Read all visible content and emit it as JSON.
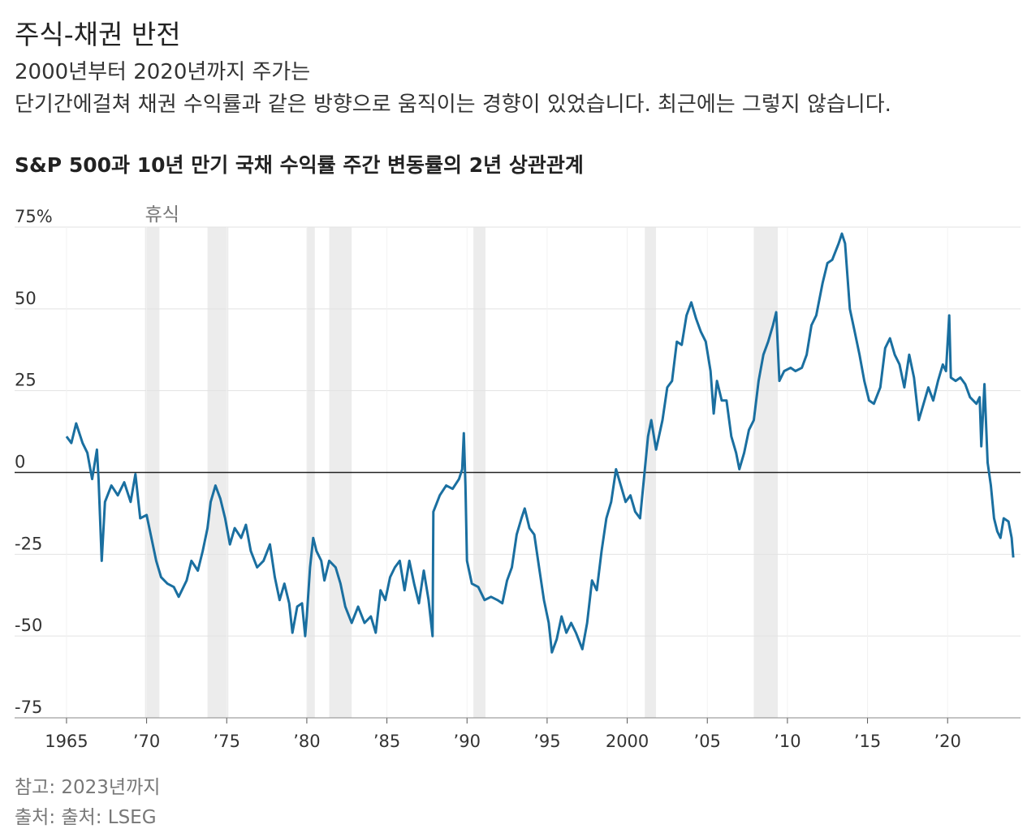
{
  "chart_data": {
    "type": "line",
    "title": "주식-채권 반전",
    "subtitle_lines": [
      "2000년부터 2020년까지 주가는",
      "단기간에걸쳐 채권 수익률과 같은 방향으로 움직이는 경향이 있었습니다. 최근에는 그렇지 않습니다."
    ],
    "chart_title": "S&P 500과 10년 만기 국채 수익률 주간 변동률의 2년 상관관계",
    "note": "참고: 2023년까지",
    "source": "출처: 출처: LSEG",
    "recession_label": "휴식",
    "recessions": [
      [
        1969.9,
        1970.8
      ],
      [
        1973.8,
        1975.1
      ],
      [
        1980.0,
        1980.5
      ],
      [
        1981.4,
        1982.8
      ],
      [
        1990.4,
        1991.15
      ],
      [
        2001.1,
        2001.8
      ],
      [
        2007.9,
        2009.4
      ]
    ],
    "color": "#1a6fa0",
    "grid": true,
    "xlim": [
      1961.76,
      2024.55
    ],
    "ylim": [
      -75,
      75
    ],
    "yticks": [
      -75,
      -50,
      -25,
      0,
      25,
      50,
      {
        "value": 75,
        "label": "75%"
      }
    ],
    "xticks": [
      1965,
      {
        "value": 1970,
        "label": "’70"
      },
      {
        "value": 1975,
        "label": "’75"
      },
      {
        "value": 1980,
        "label": "’80"
      },
      {
        "value": 1985,
        "label": "’85"
      },
      {
        "value": 1990,
        "label": "’90"
      },
      {
        "value": 1995,
        "label": "’95"
      },
      2000,
      {
        "value": 2005,
        "label": "’05"
      },
      {
        "value": 2010,
        "label": "’10"
      },
      {
        "value": 2015,
        "label": "’15"
      },
      {
        "value": 2020,
        "label": "’20"
      }
    ],
    "x": [
      1965.0,
      1965.3,
      1965.6,
      1966.0,
      1966.3,
      1966.6,
      1966.9,
      1967.0,
      1967.2,
      1967.4,
      1967.8,
      1968.2,
      1968.6,
      1969.0,
      1969.3,
      1969.6,
      1970.0,
      1970.3,
      1970.6,
      1970.9,
      1971.3,
      1971.7,
      1972.0,
      1972.5,
      1972.8,
      1973.2,
      1973.5,
      1973.8,
      1974.0,
      1974.3,
      1974.6,
      1974.9,
      1975.2,
      1975.5,
      1975.9,
      1976.2,
      1976.5,
      1976.9,
      1977.3,
      1977.7,
      1978.0,
      1978.3,
      1978.6,
      1978.9,
      1979.1,
      1979.4,
      1979.7,
      1979.9,
      1980.0,
      1980.2,
      1980.4,
      1980.6,
      1980.9,
      1981.1,
      1981.4,
      1981.8,
      1982.1,
      1982.4,
      1982.8,
      1983.2,
      1983.6,
      1984.0,
      1984.3,
      1984.6,
      1984.9,
      1985.2,
      1985.5,
      1985.8,
      1986.1,
      1986.4,
      1986.7,
      1987.0,
      1987.3,
      1987.6,
      1987.85,
      1987.9,
      1988.3,
      1988.7,
      1989.1,
      1989.5,
      1989.7,
      1989.8,
      1989.9,
      1990.0,
      1990.3,
      1990.7,
      1991.1,
      1991.5,
      1991.9,
      1992.2,
      1992.5,
      1992.8,
      1993.1,
      1993.4,
      1993.6,
      1993.9,
      1994.2,
      1994.5,
      1994.8,
      1995.1,
      1995.3,
      1995.6,
      1995.9,
      1996.2,
      1996.5,
      1996.8,
      1997.2,
      1997.5,
      1997.8,
      1998.1,
      1998.4,
      1998.7,
      1999.0,
      1999.3,
      1999.6,
      1999.9,
      2000.2,
      2000.5,
      2000.8,
      2001.1,
      2001.3,
      2001.5,
      2001.8,
      2002.2,
      2002.5,
      2002.8,
      2003.1,
      2003.4,
      2003.7,
      2004.0,
      2004.3,
      2004.6,
      2004.9,
      2005.2,
      2005.4,
      2005.6,
      2005.9,
      2006.2,
      2006.5,
      2006.8,
      2007.0,
      2007.3,
      2007.6,
      2007.9,
      2008.2,
      2008.5,
      2008.8,
      2009.1,
      2009.3,
      2009.5,
      2009.8,
      2010.2,
      2010.5,
      2010.9,
      2011.2,
      2011.5,
      2011.8,
      2012.2,
      2012.5,
      2012.8,
      2013.2,
      2013.4,
      2013.6,
      2013.9,
      2014.2,
      2014.5,
      2014.8,
      2015.1,
      2015.4,
      2015.8,
      2016.1,
      2016.4,
      2016.7,
      2017.0,
      2017.3,
      2017.6,
      2017.9,
      2018.2,
      2018.5,
      2018.8,
      2019.1,
      2019.4,
      2019.7,
      2019.9,
      2020.1,
      2020.2,
      2020.5,
      2020.8,
      2021.1,
      2021.4,
      2021.8,
      2022.0,
      2022.1,
      2022.3,
      2022.5,
      2022.7,
      2022.9,
      2023.1,
      2023.3,
      2023.5,
      2023.8,
      2024.0,
      2024.1
    ],
    "values": [
      11,
      9,
      15,
      9,
      6,
      -2,
      7,
      -2,
      -27,
      -9,
      -4,
      -7,
      -3,
      -9,
      -0.5,
      -14,
      -13,
      -20,
      -27,
      -32,
      -34,
      -35,
      -38,
      -33,
      -27,
      -30,
      -24,
      -17,
      -9,
      -4,
      -8,
      -14,
      -22,
      -17,
      -20,
      -16,
      -24,
      -29,
      -27,
      -22,
      -32,
      -39,
      -34,
      -40,
      -49,
      -41,
      -40,
      -50,
      -44,
      -29,
      -20,
      -24,
      -27,
      -33,
      -27,
      -29,
      -34,
      -41,
      -46,
      -41,
      -46,
      -44,
      -49,
      -36,
      -39,
      -32,
      -29,
      -27,
      -36,
      -27,
      -34,
      -40,
      -30,
      -39,
      -50,
      -12,
      -7,
      -4,
      -5,
      -2,
      1,
      12,
      -4,
      -27,
      -34,
      -35,
      -39,
      -38,
      -39,
      -40,
      -33,
      -29,
      -19,
      -14,
      -11,
      -17,
      -19,
      -29,
      -39,
      -46,
      -55,
      -51,
      -44,
      -49,
      -46,
      -49,
      -54,
      -46,
      -33,
      -36,
      -24,
      -14,
      -9,
      1,
      -4,
      -9,
      -7,
      -12,
      -14,
      1,
      11,
      16,
      7,
      16,
      26,
      28,
      40,
      39,
      48,
      52,
      47,
      43,
      40,
      31,
      18,
      28,
      22,
      22,
      11,
      6,
      1,
      6,
      13,
      16,
      28,
      36,
      40,
      45,
      49,
      28,
      31,
      32,
      31,
      32,
      36,
      45,
      48,
      58,
      64,
      65,
      70,
      73,
      70,
      50,
      43,
      36,
      28,
      22,
      21,
      26,
      38,
      41,
      36,
      33,
      26,
      36,
      29,
      16,
      21,
      26,
      22,
      28,
      33,
      31,
      48,
      29,
      28,
      29,
      27,
      23,
      21,
      23,
      8,
      27,
      3,
      -4,
      -14,
      -18,
      -20,
      -14,
      -15,
      -20,
      -26
    ]
  }
}
